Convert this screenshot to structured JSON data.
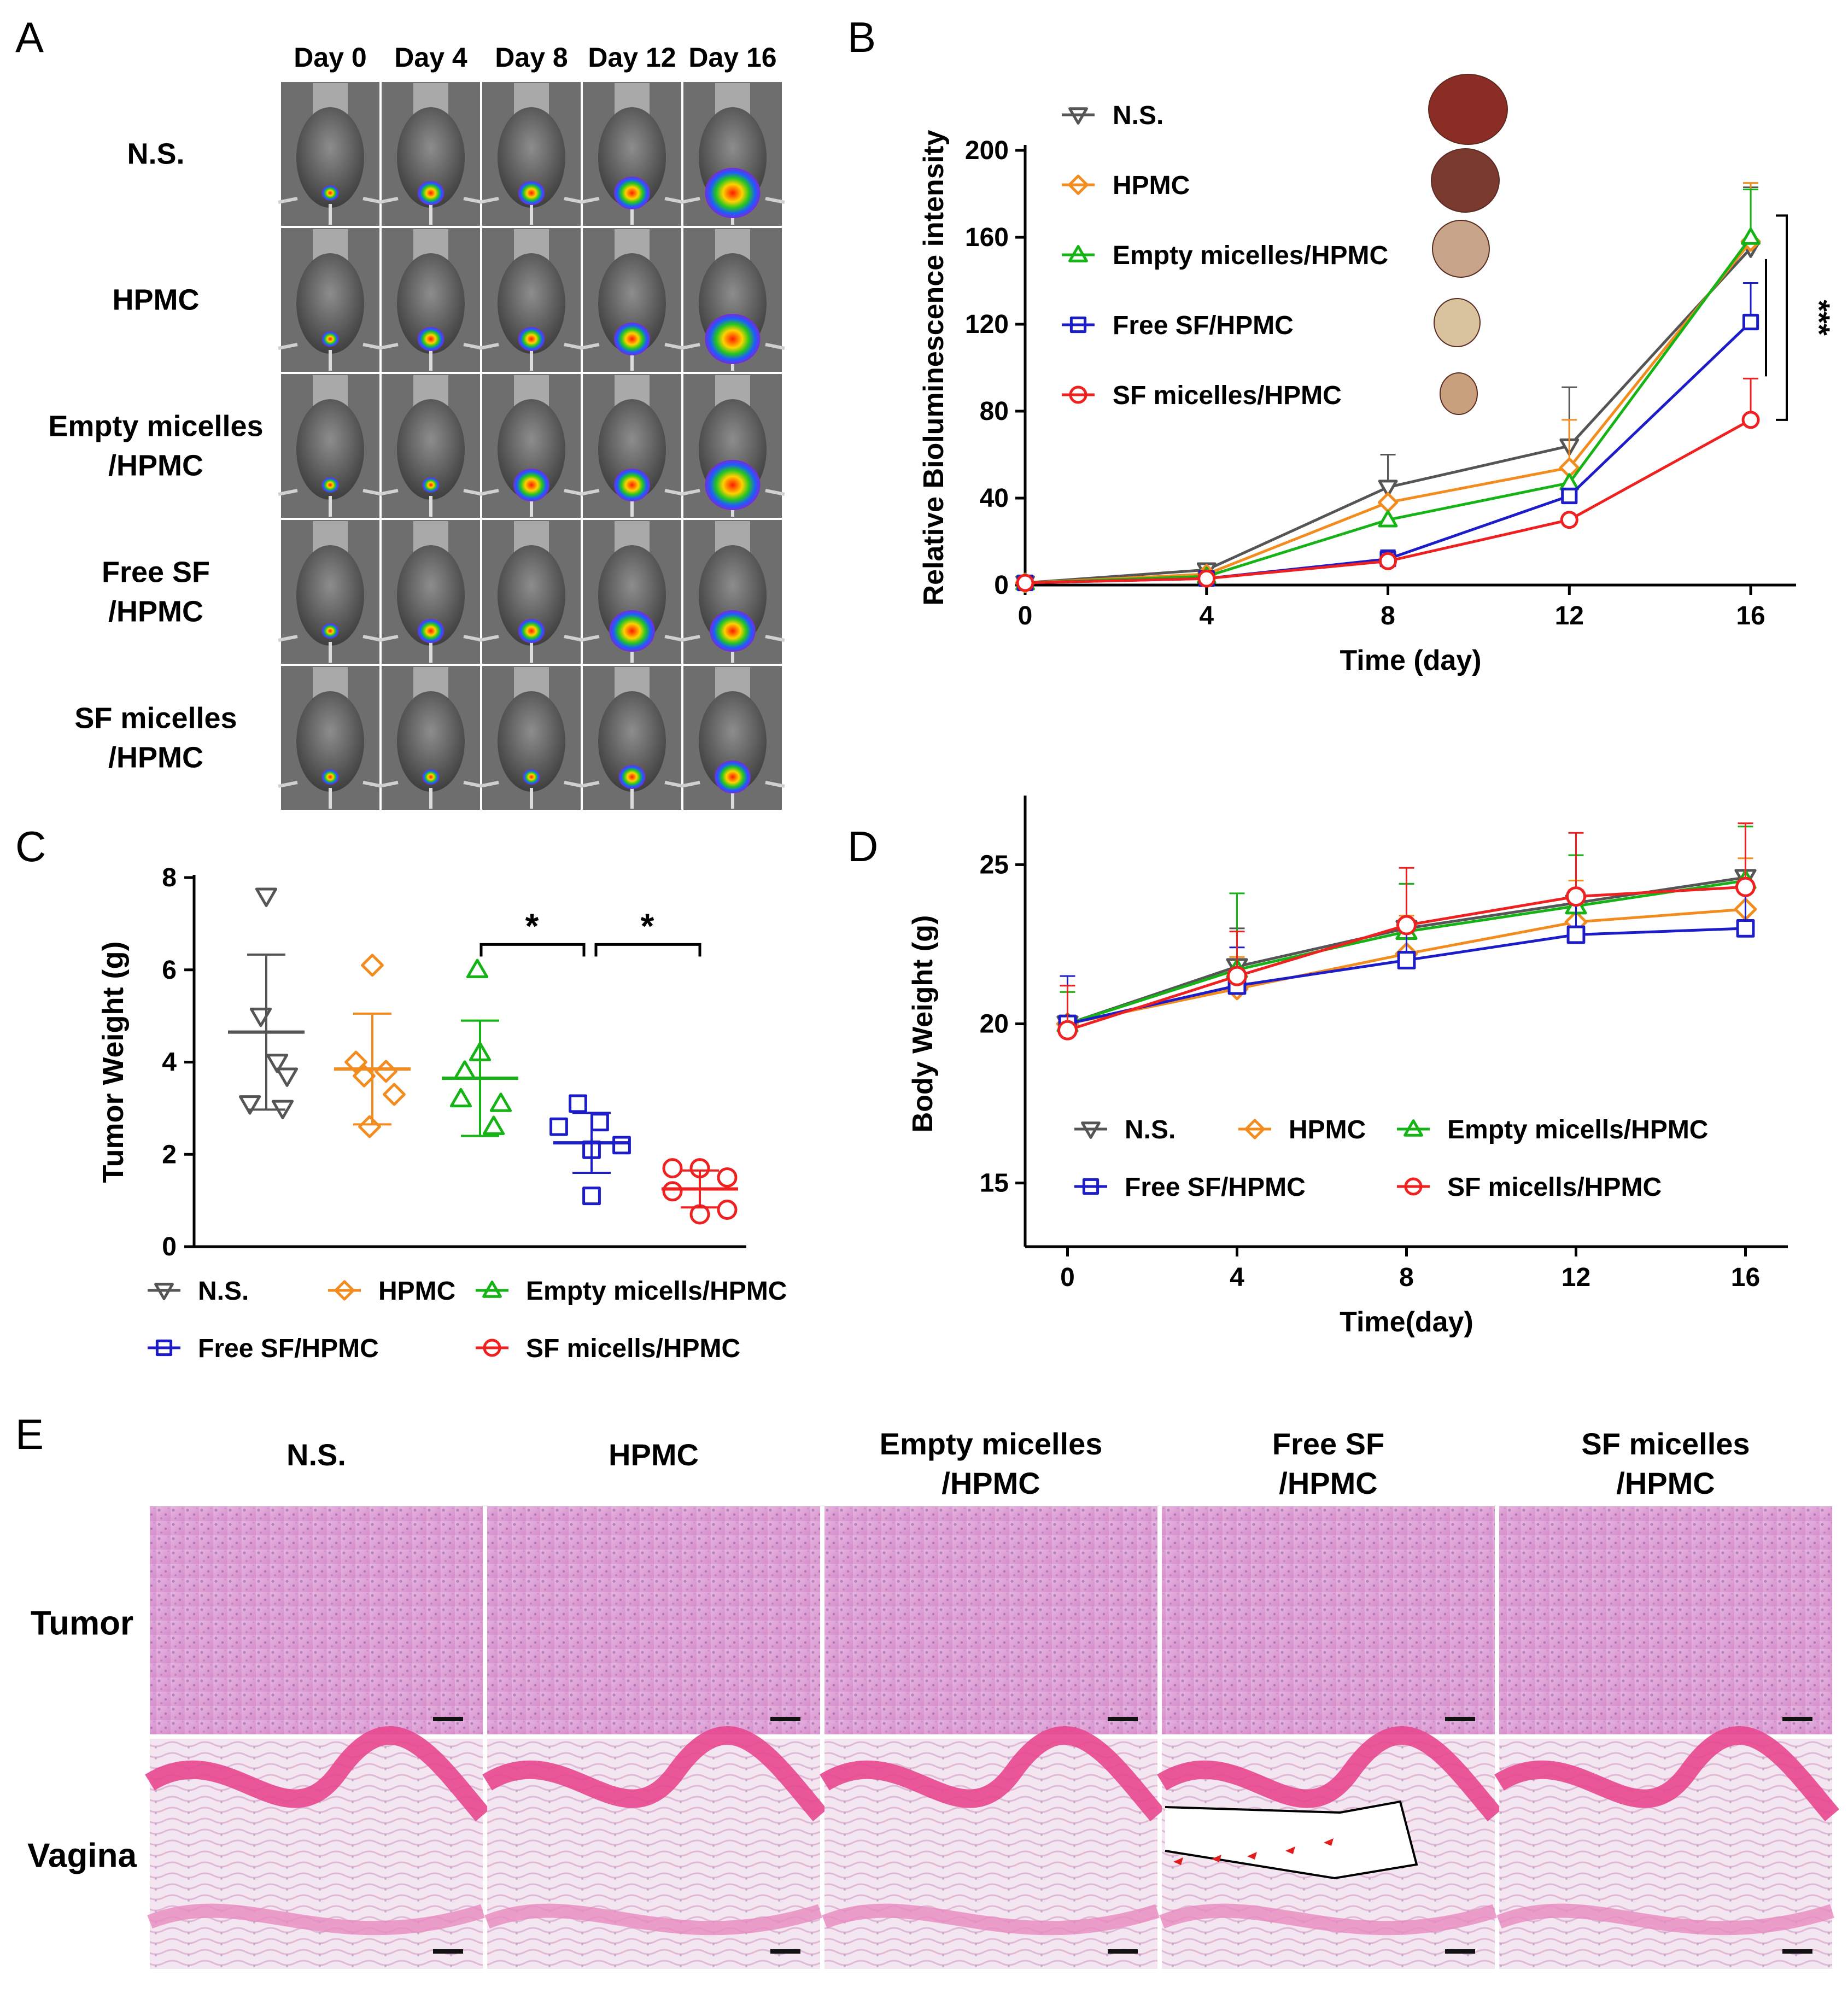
{
  "panel_letters": [
    "A",
    "B",
    "C",
    "D",
    "E"
  ],
  "panelA": {
    "day_labels": [
      "Day 0",
      "Day 4",
      "Day 8",
      "Day 12",
      "Day 16"
    ],
    "group_labels": [
      [
        "N.S."
      ],
      [
        "HPMC"
      ],
      [
        "Empty micelles",
        "/HPMC"
      ],
      [
        "Free SF",
        "/HPMC"
      ],
      [
        "SF micelles",
        "/HPMC"
      ]
    ],
    "signal_size": [
      [
        1,
        2,
        2,
        3,
        5
      ],
      [
        1,
        2,
        2,
        3,
        5
      ],
      [
        1,
        1,
        3,
        3,
        5
      ],
      [
        1,
        2,
        2,
        4,
        4
      ],
      [
        1,
        1,
        1,
        2,
        3
      ]
    ]
  },
  "panelE": {
    "column_labels": [
      [
        "N.S."
      ],
      [
        "HPMC"
      ],
      [
        "Empty micelles",
        "/HPMC"
      ],
      [
        "Free SF",
        "/HPMC"
      ],
      [
        "SF micelles",
        "/HPMC"
      ]
    ],
    "row_labels": [
      "Tumor",
      "Vagina"
    ]
  },
  "colors": {
    "ns": "#555555",
    "hpmc": "#f28c1e",
    "empty": "#16b316",
    "free": "#1c1cc8",
    "sf": "#ee2020"
  },
  "chart_data": [
    {
      "panel": "B",
      "type": "line",
      "title": "",
      "xlabel": "Time (day)",
      "ylabel": "Relative Bioluminescence intensity",
      "x": [
        0,
        4,
        8,
        12,
        16
      ],
      "xlim": [
        0,
        17
      ],
      "ylim": [
        0,
        200
      ],
      "xticks": [
        0,
        4,
        8,
        12,
        16
      ],
      "yticks": [
        0,
        40,
        80,
        120,
        160,
        200
      ],
      "legend_position": "top-left",
      "series": [
        {
          "name": "N.S.",
          "marker": "triangle-down",
          "color": "#555555",
          "values": [
            1,
            7,
            45,
            64,
            155
          ],
          "errors": [
            0,
            0,
            15,
            27,
            28
          ]
        },
        {
          "name": "HPMC",
          "marker": "diamond",
          "color": "#f28c1e",
          "values": [
            1,
            5,
            38,
            54,
            158
          ],
          "errors": [
            0,
            0,
            0,
            22,
            27
          ]
        },
        {
          "name": "Empty micelles/HPMC",
          "marker": "triangle-up",
          "color": "#16b316",
          "values": [
            1,
            4,
            30,
            47,
            160
          ],
          "errors": [
            0,
            0,
            0,
            0,
            22
          ]
        },
        {
          "name": "Free SF/HPMC",
          "marker": "square",
          "color": "#1c1cc8",
          "values": [
            1,
            3,
            12,
            41,
            121
          ],
          "errors": [
            0,
            0,
            4,
            0,
            18
          ]
        },
        {
          "name": "SF micelles/HPMC",
          "marker": "circle",
          "color": "#ee2020",
          "values": [
            1,
            3,
            11,
            30,
            76
          ],
          "errors": [
            0,
            0,
            0,
            0,
            19
          ]
        }
      ],
      "annotations": [
        "***"
      ]
    },
    {
      "panel": "C",
      "type": "scatter",
      "title": "",
      "xlabel": "",
      "ylabel": "Tumor Weight (g)",
      "ylim": [
        0,
        8
      ],
      "yticks": [
        0,
        2,
        4,
        6,
        8
      ],
      "legend_position": "bottom",
      "groups": [
        {
          "name": "N.S.",
          "marker": "triangle-down",
          "color": "#555555",
          "points": [
            7.6,
            5.0,
            4.0,
            3.7,
            3.1,
            3.0
          ],
          "mean": 4.65,
          "sd": 1.68
        },
        {
          "name": "HPMC",
          "marker": "diamond",
          "color": "#f28c1e",
          "points": [
            6.1,
            4.0,
            3.8,
            3.7,
            3.3,
            2.6
          ],
          "mean": 3.85,
          "sd": 1.2
        },
        {
          "name": "Empty micells/HPMC",
          "marker": "triangle-up",
          "color": "#16b316",
          "points": [
            6.0,
            4.2,
            3.8,
            3.2,
            3.1,
            2.6
          ],
          "mean": 3.65,
          "sd": 1.25
        },
        {
          "name": "Free SF/HPMC",
          "marker": "square",
          "color": "#1c1cc8",
          "points": [
            3.1,
            2.7,
            2.6,
            2.2,
            2.1,
            1.1
          ],
          "mean": 2.25,
          "sd": 0.65
        },
        {
          "name": "SF micells/HPMC",
          "marker": "circle",
          "color": "#ee2020",
          "points": [
            1.7,
            1.7,
            1.5,
            1.2,
            0.8,
            0.7
          ],
          "mean": 1.25,
          "sd": 0.4
        }
      ],
      "annotations": [
        "*",
        "*"
      ]
    },
    {
      "panel": "D",
      "type": "line",
      "title": "",
      "xlabel": "Time(day)",
      "ylabel": "Body Weight (g)",
      "x": [
        0,
        4,
        8,
        12,
        16
      ],
      "xlim": [
        -1,
        17
      ],
      "ylim": [
        13,
        27
      ],
      "xticks": [
        0,
        4,
        8,
        12,
        16
      ],
      "yticks": [
        15,
        20,
        25
      ],
      "legend_position": "bottom-left",
      "series": [
        {
          "name": "N.S.",
          "marker": "triangle-down",
          "color": "#555555",
          "values": [
            20.0,
            21.8,
            23.0,
            23.8,
            24.6
          ],
          "errors": [
            1.2,
            1.2,
            1.4,
            1.5,
            1.6
          ]
        },
        {
          "name": "HPMC",
          "marker": "diamond",
          "color": "#f28c1e",
          "values": [
            20.0,
            21.1,
            22.2,
            23.2,
            23.6
          ],
          "errors": [
            1.0,
            1.0,
            1.2,
            1.3,
            1.6
          ]
        },
        {
          "name": "Empty micells/HPMC",
          "marker": "triangle-up",
          "color": "#16b316",
          "values": [
            20.0,
            21.7,
            22.9,
            23.7,
            24.5
          ],
          "errors": [
            1.0,
            2.4,
            1.5,
            1.6,
            1.7
          ]
        },
        {
          "name": "Free SF/HPMC",
          "marker": "square",
          "color": "#1c1cc8",
          "values": [
            20.0,
            21.2,
            22.0,
            22.8,
            23.0
          ],
          "errors": [
            1.5,
            1.2,
            1.2,
            1.4,
            1.5
          ]
        },
        {
          "name": "SF micells/HPMC",
          "marker": "circle",
          "color": "#ee2020",
          "values": [
            19.8,
            21.5,
            23.1,
            24.0,
            24.3
          ],
          "errors": [
            1.4,
            1.4,
            1.8,
            2.0,
            2.0
          ]
        }
      ]
    }
  ]
}
